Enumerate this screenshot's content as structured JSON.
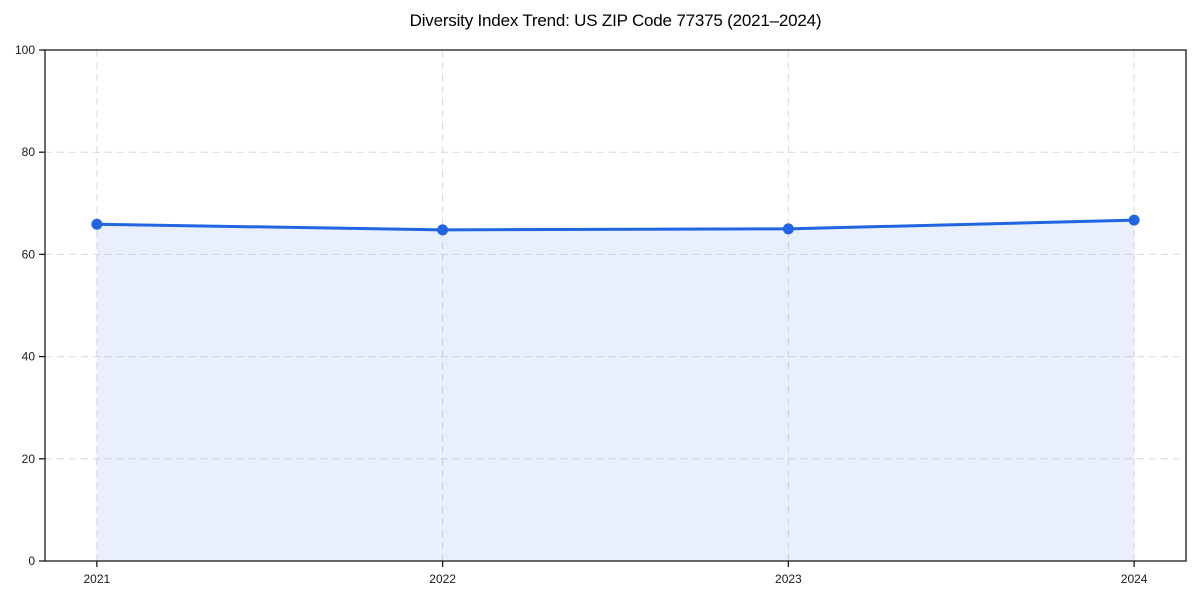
{
  "chart_data": {
    "type": "area",
    "title": "Diversity Index Trend: US ZIP Code 77375 (2021–2024)",
    "categories": [
      "2021",
      "2022",
      "2023",
      "2024"
    ],
    "series": [
      {
        "name": "Diversity Index",
        "values": [
          65.9,
          64.8,
          65.0,
          66.7
        ]
      }
    ],
    "xlabel": "",
    "ylabel": "",
    "ylim": [
      0,
      100
    ],
    "yticks": [
      0,
      20,
      40,
      60,
      80,
      100
    ],
    "grid": "dashed, horizontal and vertical",
    "legend_position": "none",
    "colors": {
      "line": "#2166e0",
      "marker": "#2166e0",
      "fill": "#2563eb",
      "fill_opacity": 0.1,
      "grid": "#d9d9d9",
      "axis": "#1a1a1a",
      "tick_label": "#1a1a1a",
      "title": "#000000",
      "background": "#ffffff"
    }
  }
}
